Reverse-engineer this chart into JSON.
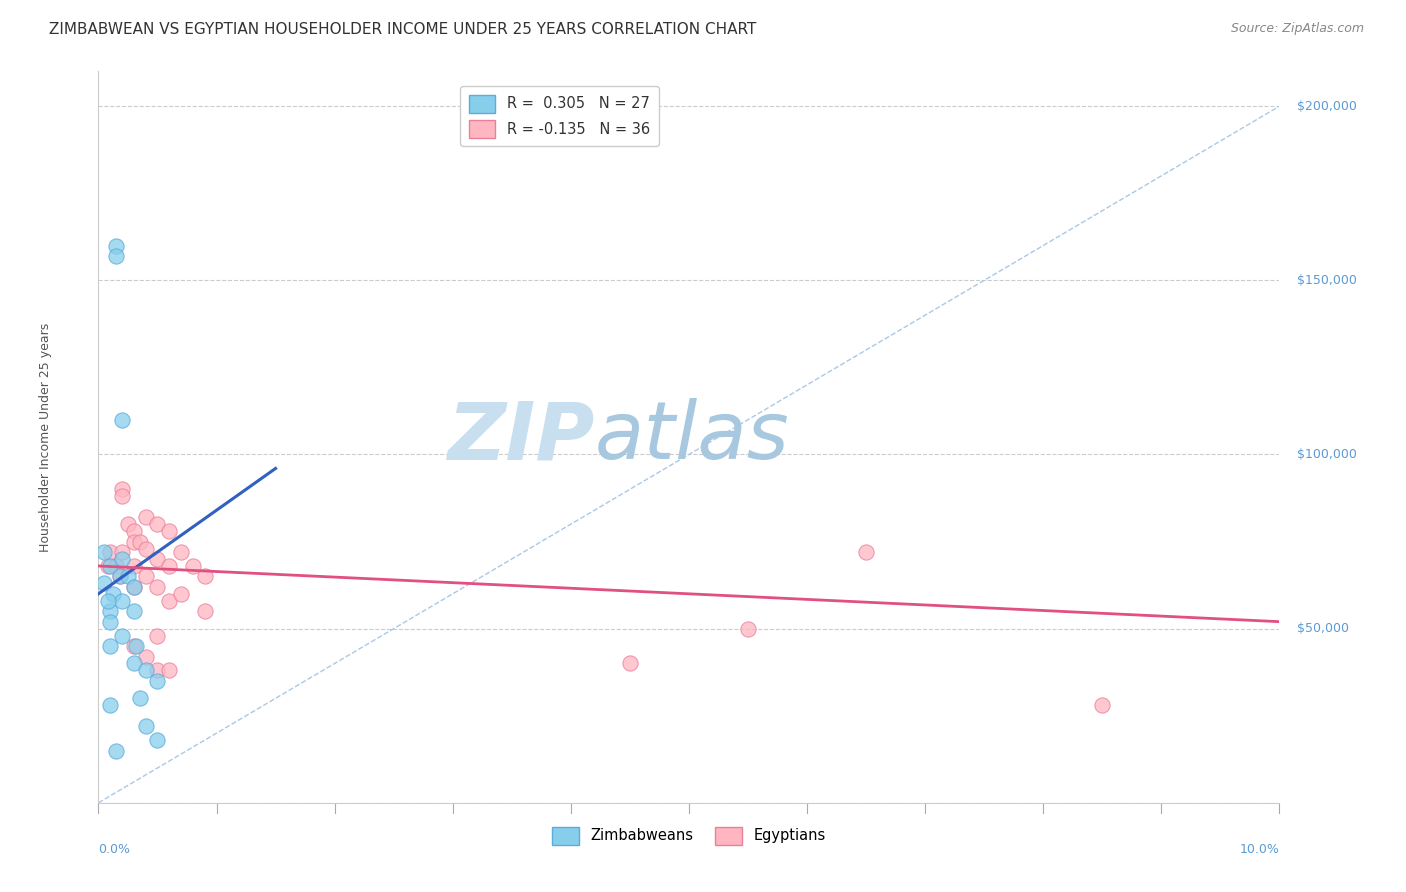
{
  "title": "ZIMBABWEAN VS EGYPTIAN HOUSEHOLDER INCOME UNDER 25 YEARS CORRELATION CHART",
  "source": "Source: ZipAtlas.com",
  "ylabel": "Householder Income Under 25 years",
  "xlim": [
    0.0,
    0.1
  ],
  "ylim": [
    0,
    210000
  ],
  "yticks": [
    0,
    50000,
    100000,
    150000,
    200000
  ],
  "ytick_labels": [
    "",
    "$50,000",
    "$100,000",
    "$150,000",
    "$200,000"
  ],
  "xticks": [
    0.0,
    0.01,
    0.02,
    0.03,
    0.04,
    0.05,
    0.06,
    0.07,
    0.08,
    0.09,
    0.1
  ],
  "zim_color": "#87CEEB",
  "zim_edge": "#5aabde",
  "egy_color": "#FFB6C1",
  "egy_edge": "#e8809a",
  "blue_line_color": "#3060c0",
  "pink_line_color": "#e05080",
  "diag_line_color": "#aac8e8",
  "grid_color": "#cccccc",
  "bg_color": "#ffffff",
  "watermark_zip": "ZIP",
  "watermark_atlas": "atlas",
  "watermark_color_zip": "#c8dff0",
  "watermark_color_atlas": "#a8c8e0",
  "title_fontsize": 11,
  "axis_label_fontsize": 9,
  "tick_fontsize": 9,
  "source_fontsize": 9,
  "zim_x": [
    0.0005,
    0.001,
    0.001,
    0.001,
    0.0012,
    0.0015,
    0.0015,
    0.0018,
    0.002,
    0.002,
    0.002,
    0.002,
    0.0025,
    0.003,
    0.003,
    0.003,
    0.0032,
    0.0035,
    0.004,
    0.004,
    0.005,
    0.005,
    0.0005,
    0.0008,
    0.001,
    0.001,
    0.0015
  ],
  "zim_y": [
    63000,
    68000,
    55000,
    52000,
    60000,
    160000,
    157000,
    65000,
    110000,
    70000,
    58000,
    48000,
    65000,
    62000,
    55000,
    40000,
    45000,
    30000,
    38000,
    22000,
    35000,
    18000,
    72000,
    58000,
    45000,
    28000,
    15000
  ],
  "egy_x": [
    0.0008,
    0.001,
    0.0015,
    0.0018,
    0.002,
    0.002,
    0.002,
    0.0025,
    0.003,
    0.003,
    0.003,
    0.003,
    0.0035,
    0.004,
    0.004,
    0.004,
    0.005,
    0.005,
    0.005,
    0.006,
    0.006,
    0.006,
    0.007,
    0.007,
    0.008,
    0.009,
    0.009,
    0.003,
    0.004,
    0.005,
    0.005,
    0.006,
    0.065,
    0.055,
    0.045,
    0.085
  ],
  "egy_y": [
    68000,
    72000,
    68000,
    65000,
    90000,
    88000,
    72000,
    80000,
    78000,
    75000,
    68000,
    62000,
    75000,
    82000,
    73000,
    65000,
    80000,
    70000,
    62000,
    78000,
    68000,
    58000,
    72000,
    60000,
    68000,
    65000,
    55000,
    45000,
    42000,
    48000,
    38000,
    38000,
    72000,
    50000,
    40000,
    28000
  ],
  "zim_trend_x": [
    0.0,
    0.015
  ],
  "zim_trend_y": [
    60000,
    96000
  ],
  "egy_trend_x": [
    0.0,
    0.1
  ],
  "egy_trend_y": [
    68000,
    52000
  ]
}
